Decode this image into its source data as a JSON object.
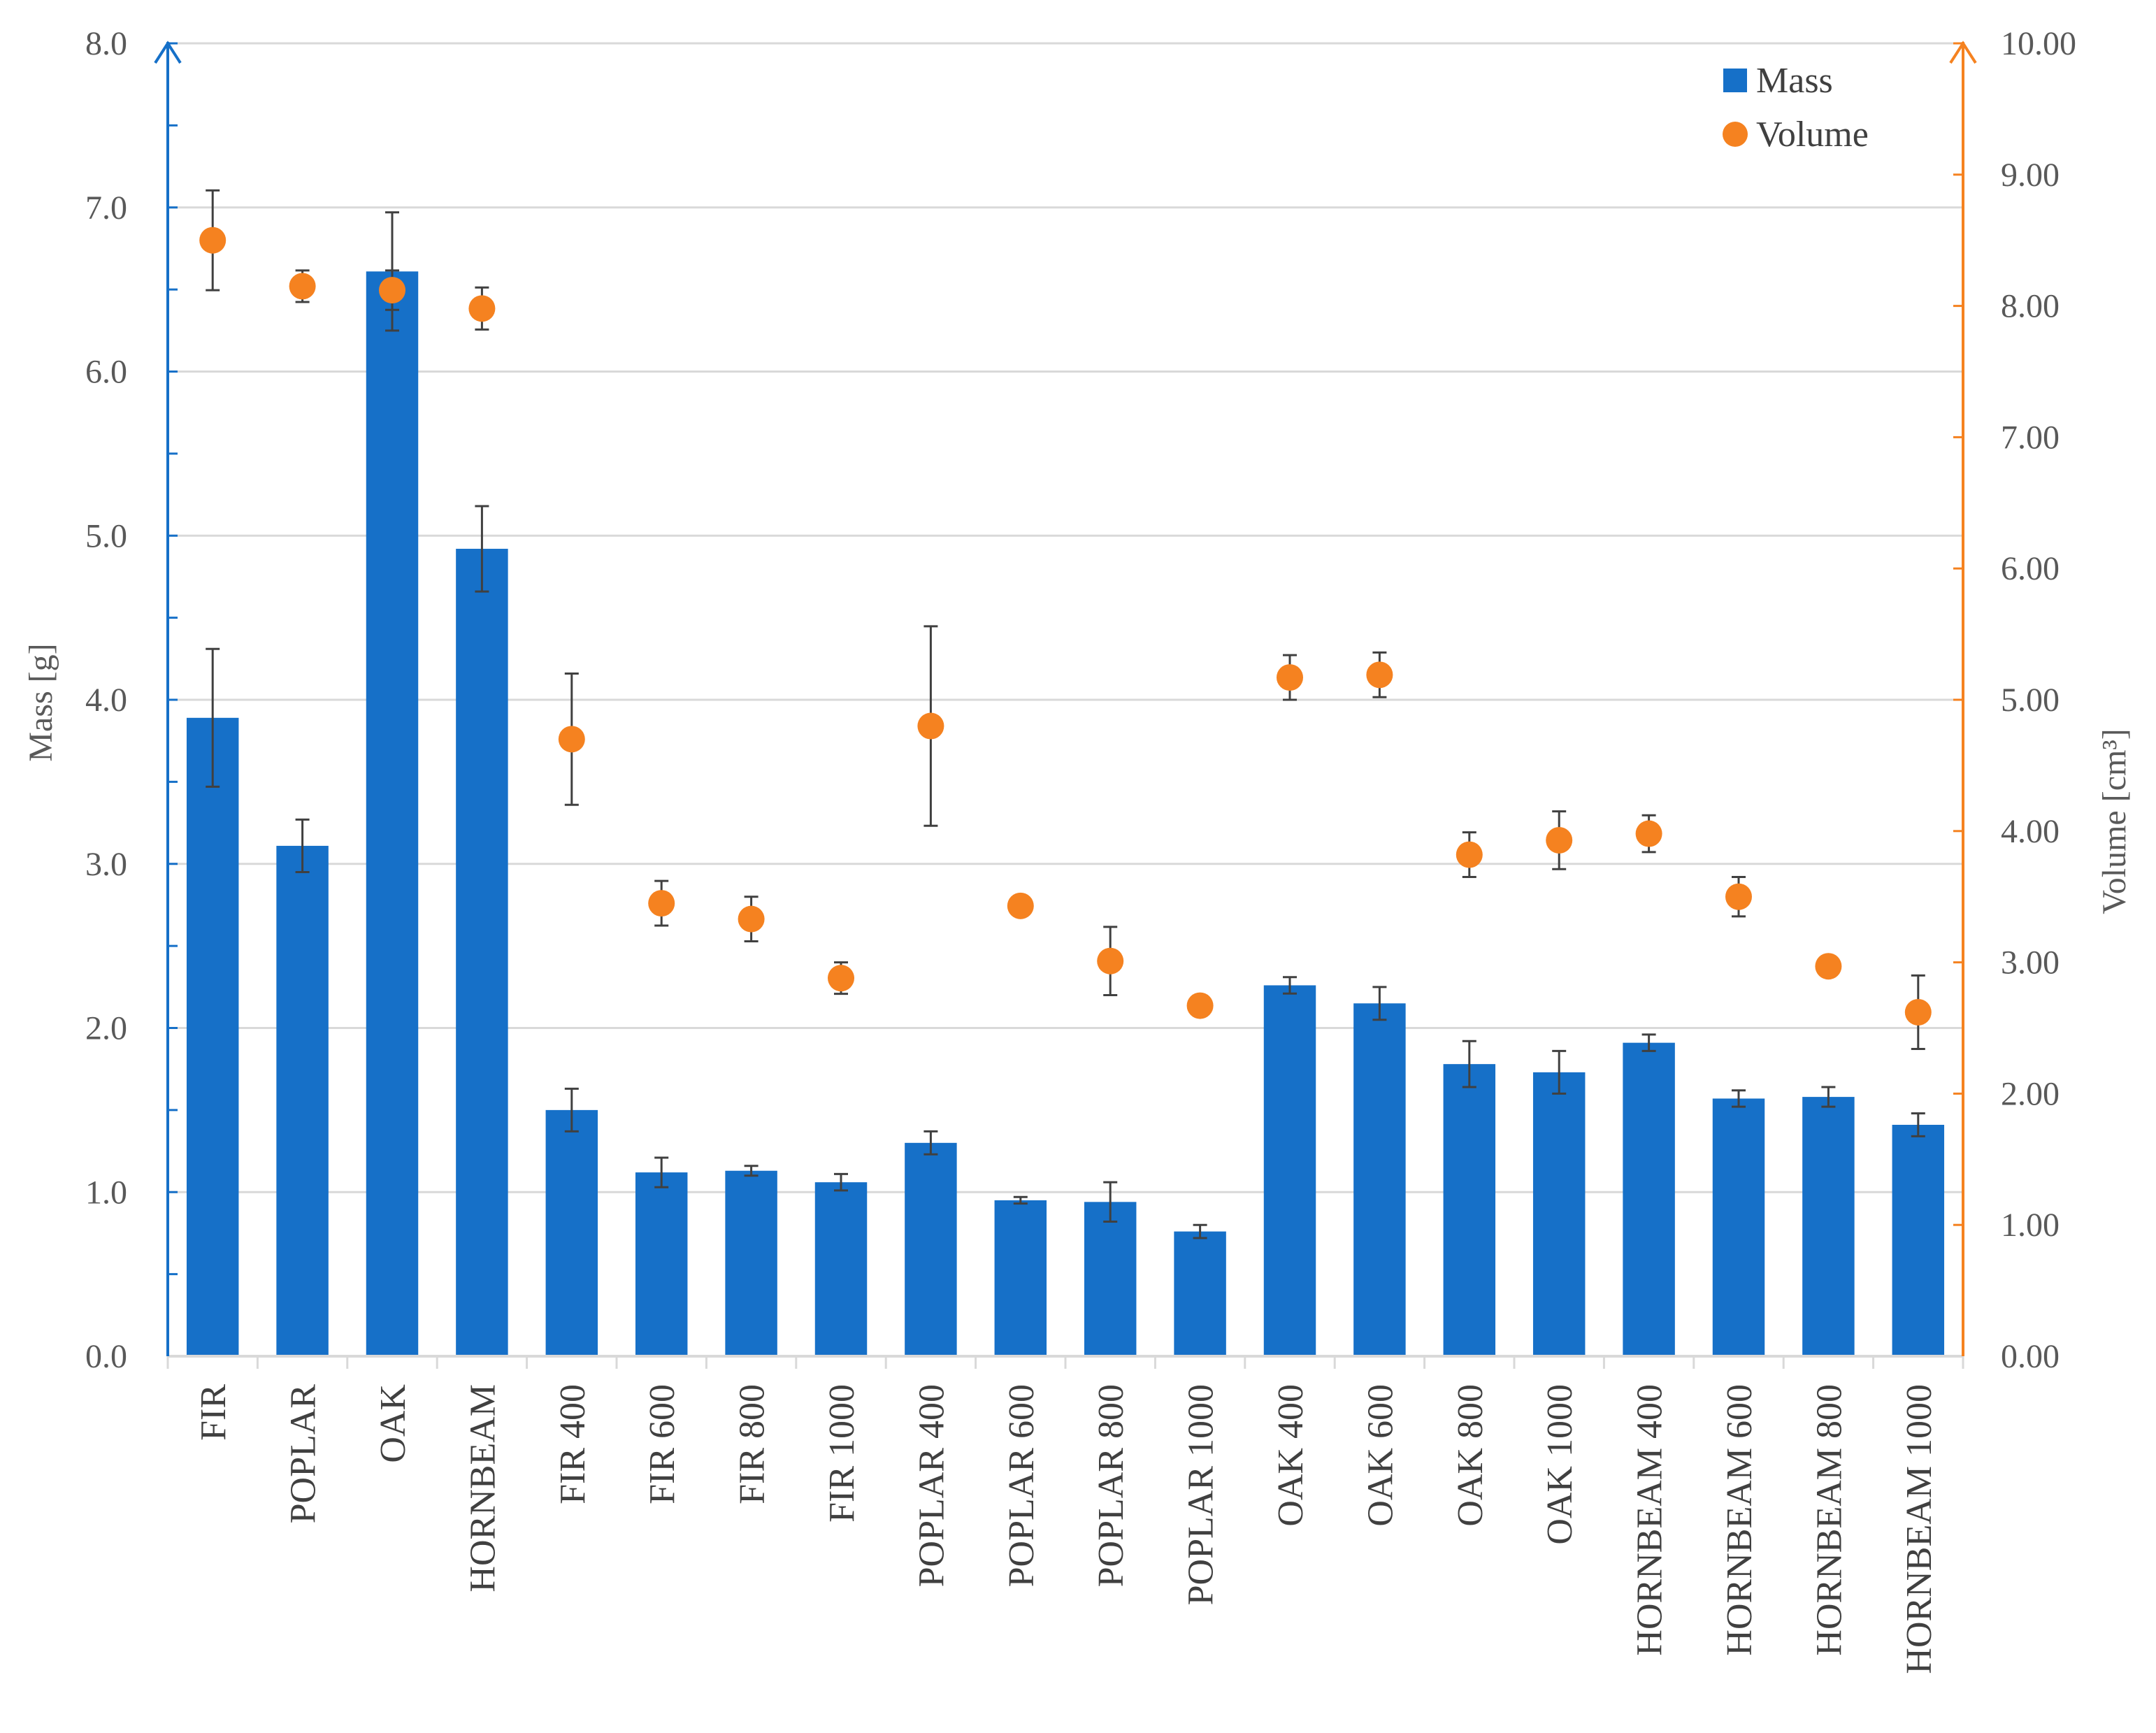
{
  "chart_data": {
    "type": "bar+scatter",
    "title": "",
    "categories": [
      "FIR",
      "POPLAR",
      "OAK",
      "HORNBEAM",
      "FIR 400",
      "FIR 600",
      "FIR 800",
      "FIR 1000",
      "POPLAR 400",
      "POPLAR 600",
      "POPLAR 800",
      "POPLAR 1000",
      "OAK 400",
      "OAK 600",
      "OAK 800",
      "OAK 1000",
      "HORNBEAM 400",
      "HORNBEAM 600",
      "HORNBEAM 800",
      "HORNBEAM 1000"
    ],
    "series": [
      {
        "name": "Mass",
        "type": "bar",
        "axis": "left",
        "values": [
          3.89,
          3.11,
          6.61,
          4.92,
          1.5,
          1.12,
          1.13,
          1.06,
          1.3,
          0.95,
          0.94,
          0.76,
          2.26,
          2.15,
          1.78,
          1.73,
          1.91,
          1.57,
          1.58,
          1.41
        ],
        "errors": [
          0.42,
          0.16,
          0.36,
          0.26,
          0.13,
          0.09,
          0.03,
          0.05,
          0.07,
          0.02,
          0.12,
          0.04,
          0.05,
          0.1,
          0.14,
          0.13,
          0.05,
          0.05,
          0.06,
          0.07
        ]
      },
      {
        "name": "Volume",
        "type": "scatter",
        "axis": "right",
        "values": [
          8.5,
          8.15,
          8.12,
          7.98,
          4.7,
          3.45,
          3.33,
          2.88,
          4.8,
          3.43,
          3.01,
          2.67,
          5.17,
          5.19,
          3.82,
          3.93,
          3.98,
          3.5,
          2.97,
          2.62
        ],
        "errors": [
          0.38,
          0.12,
          0.15,
          0.16,
          0.5,
          0.17,
          0.17,
          0.12,
          0.76,
          0.0,
          0.26,
          0.06,
          0.17,
          0.17,
          0.17,
          0.22,
          0.14,
          0.15,
          0.05,
          0.28
        ]
      }
    ],
    "y_left": {
      "label": "Mass [g]",
      "min": 0,
      "max": 8,
      "ticks": [
        "0.0",
        "1.0",
        "2.0",
        "3.0",
        "4.0",
        "5.0",
        "6.0",
        "7.0",
        "8.0"
      ]
    },
    "y_right": {
      "label": "Volume [cm³]",
      "min": 0,
      "max": 10,
      "ticks": [
        "0.00",
        "1.00",
        "2.00",
        "3.00",
        "4.00",
        "5.00",
        "6.00",
        "7.00",
        "8.00",
        "9.00",
        "10.00"
      ]
    },
    "legend": {
      "position": "top-right",
      "entries": [
        "Mass",
        "Volume"
      ]
    },
    "grid": true,
    "colors": {
      "bar": "#1670C8",
      "dot": "#F58220",
      "left_axis": "#1670C8",
      "right_axis": "#F58220",
      "grid": "#D9D9D9",
      "error": "#404040"
    }
  }
}
